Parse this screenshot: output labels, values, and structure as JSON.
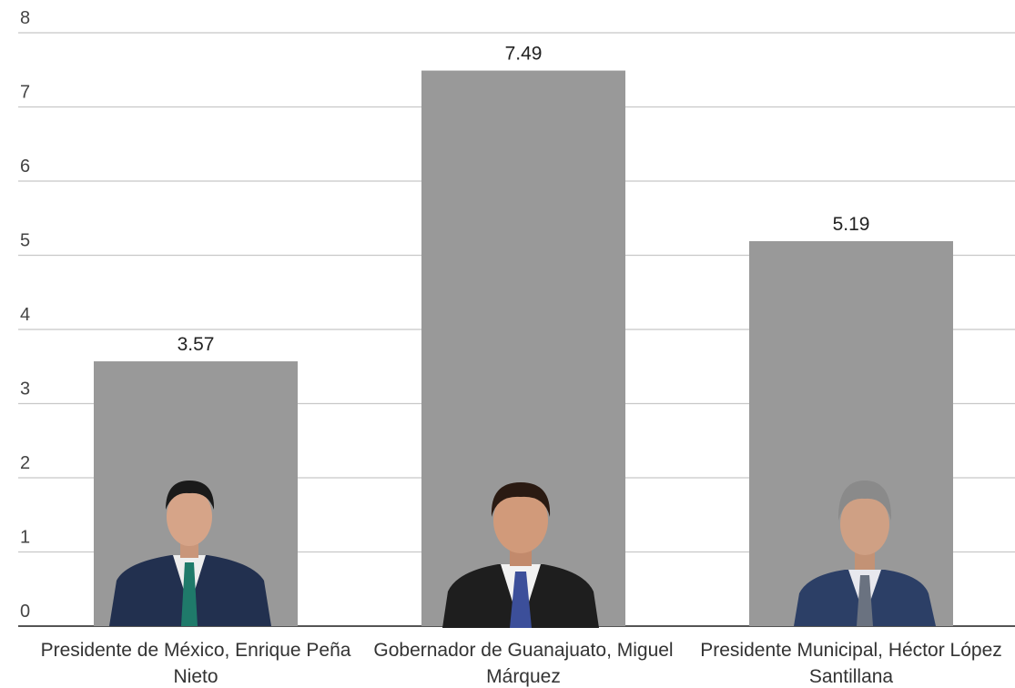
{
  "chart_data": {
    "type": "bar",
    "categories": [
      "Presidente de México, Enrique Peña Nieto",
      "Gobernador de Guanajuato, Miguel Márquez",
      "Presidente Municipal, Héctor López Santillana"
    ],
    "values": [
      3.57,
      7.49,
      5.19
    ],
    "color": "#999999",
    "ylim": [
      0,
      8
    ],
    "yticks": [
      0,
      1,
      2,
      3,
      4,
      5,
      6,
      7,
      8
    ],
    "grid": true
  }
}
